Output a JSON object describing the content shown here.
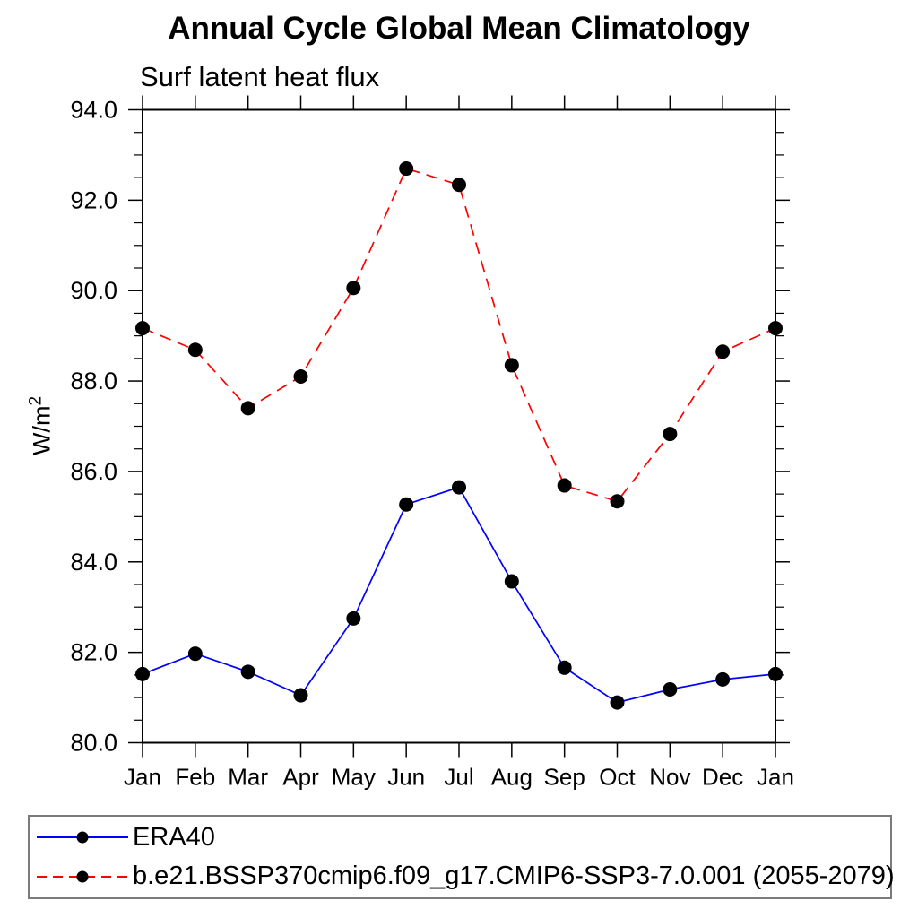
{
  "chart_data": {
    "type": "line",
    "title": "Annual Cycle Global Mean Climatology",
    "subtitle": "Surf latent heat flux",
    "ylabel_base": "W/m",
    "ylabel_exponent": "2",
    "categories": [
      "Jan",
      "Feb",
      "Mar",
      "Apr",
      "May",
      "Jun",
      "Jul",
      "Aug",
      "Sep",
      "Oct",
      "Nov",
      "Dec",
      "Jan"
    ],
    "ylim": [
      80.0,
      94.0
    ],
    "yticks": [
      80,
      82,
      84,
      86,
      88,
      90,
      92,
      94
    ],
    "ytick_labels": [
      "80.0",
      "82.0",
      "84.0",
      "86.0",
      "88.0",
      "90.0",
      "92.0",
      "94.0"
    ],
    "y_minor_step": 0.5,
    "grid": false,
    "legend_position": "bottom-left-box",
    "marker": "filled-circle",
    "marker_color": "#000000",
    "axis_color": "#000000",
    "series": [
      {
        "name": "ERA40",
        "color": "#0000ff",
        "line_style": "solid",
        "values": [
          81.52,
          81.97,
          81.57,
          81.05,
          82.75,
          85.27,
          85.65,
          83.57,
          81.66,
          80.89,
          81.18,
          81.4,
          81.52
        ]
      },
      {
        "name": "b.e21.BSSP370cmip6.f09_g17.CMIP6-SSP3-7.0.001 (2055-2079)",
        "color": "#ff0000",
        "line_style": "dashed",
        "values": [
          89.17,
          88.69,
          87.4,
          88.1,
          90.06,
          92.7,
          92.34,
          88.35,
          85.69,
          85.34,
          86.83,
          88.65,
          89.17
        ]
      }
    ]
  }
}
